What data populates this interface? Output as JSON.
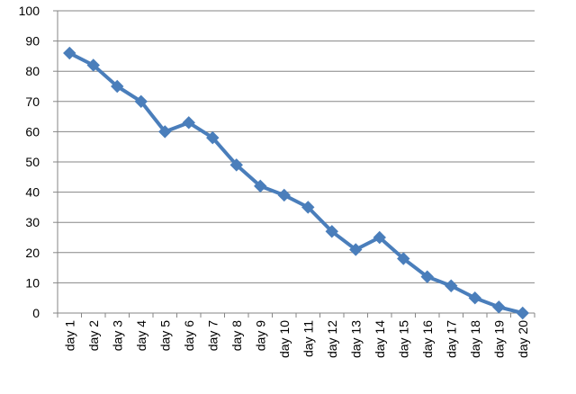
{
  "chart_data": {
    "type": "line",
    "title": "",
    "xlabel": "",
    "ylabel": "",
    "categories": [
      "day 1",
      "day 2",
      "day 3",
      "day 4",
      "day 5",
      "day 6",
      "day 7",
      "day 8",
      "day 9",
      "day 10",
      "day 11",
      "day 12",
      "day 13",
      "day 14",
      "day 15",
      "day 16",
      "day 17",
      "day 18",
      "day 19",
      "day 20"
    ],
    "series": [
      {
        "values": [
          86,
          82,
          75,
          70,
          60,
          63,
          58,
          49,
          42,
          39,
          35,
          27,
          21,
          25,
          18,
          12,
          9,
          5,
          2,
          0
        ],
        "color": "#4a7ebb",
        "marker": "diamond"
      }
    ],
    "ylim": [
      0,
      100
    ],
    "yticks": [
      0,
      10,
      20,
      30,
      40,
      50,
      60,
      70,
      80,
      90,
      100
    ],
    "grid": true,
    "legend": "none"
  }
}
